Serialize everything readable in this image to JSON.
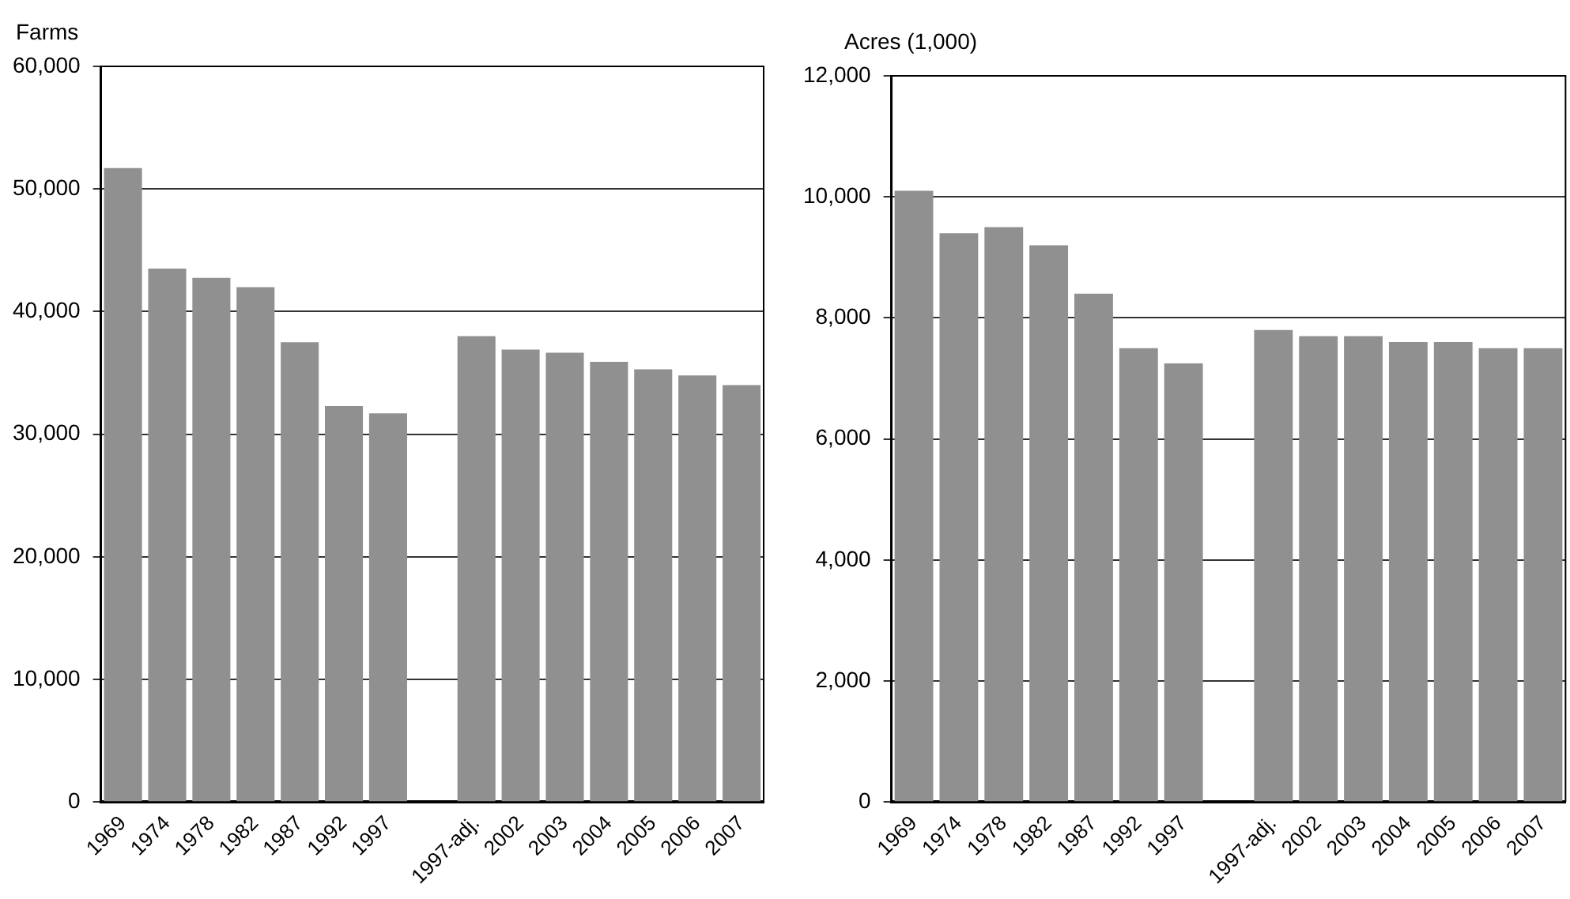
{
  "chart_data": [
    {
      "type": "bar",
      "ylabel": "Farms",
      "categories": [
        "1969",
        "1974",
        "1978",
        "1982",
        "1987",
        "1992",
        "1997",
        null,
        "1997-adj.",
        "2002",
        "2003",
        "2004",
        "2005",
        "2006",
        "2007"
      ],
      "values": [
        51700,
        43500,
        42750,
        42000,
        37500,
        32300,
        31700,
        null,
        38000,
        36900,
        36650,
        35900,
        35300,
        34800,
        34000
      ],
      "color": "#909090",
      "ylim": [
        0,
        60000
      ],
      "yticks": [
        {
          "value": 0,
          "label": "0"
        },
        {
          "value": 10000,
          "label": "10,000"
        },
        {
          "value": 20000,
          "label": "20,000"
        },
        {
          "value": 30000,
          "label": "30,000"
        },
        {
          "value": 40000,
          "label": "40,000"
        },
        {
          "value": 50000,
          "label": "50,000"
        },
        {
          "value": 60000,
          "label": "60,000"
        }
      ],
      "grid": "y",
      "legend": false
    },
    {
      "type": "bar",
      "ylabel": "Acres (1,000)",
      "categories": [
        "1969",
        "1974",
        "1978",
        "1982",
        "1987",
        "1992",
        "1997",
        null,
        "1997-adj.",
        "2002",
        "2003",
        "2004",
        "2005",
        "2006",
        "2007"
      ],
      "values": [
        10100,
        9400,
        9500,
        9200,
        8400,
        7500,
        7250,
        null,
        7800,
        7700,
        7700,
        7600,
        7600,
        7500,
        7500
      ],
      "color": "#909090",
      "ylim": [
        0,
        12000
      ],
      "yticks": [
        {
          "value": 0,
          "label": "0"
        },
        {
          "value": 2000,
          "label": "2,000"
        },
        {
          "value": 4000,
          "label": "4,000"
        },
        {
          "value": 6000,
          "label": "6,000"
        },
        {
          "value": 8000,
          "label": "8,000"
        },
        {
          "value": 10000,
          "label": "10,000"
        },
        {
          "value": 12000,
          "label": "12,000"
        }
      ],
      "grid": "y",
      "legend": false
    }
  ]
}
